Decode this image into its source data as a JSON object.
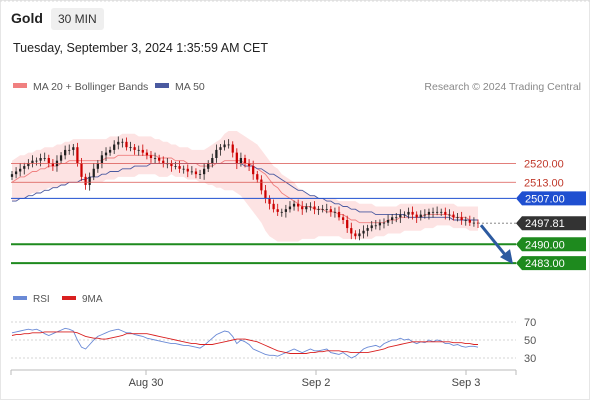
{
  "header": {
    "symbol": "Gold",
    "timeframe": "30 MIN",
    "datetime": "Tuesday, September 3, 2024 1:35:59 AM CET"
  },
  "credit": "Research © 2024 Trading Central",
  "colors": {
    "bollinger_fill": "#fde0e0",
    "ma20": "#f08080",
    "ma50": "#4a5aa0",
    "candle_up": "#222222",
    "candle_down": "#cc0000",
    "resistance": "#d9534f",
    "pivot": "#1f4fd0",
    "support": "#1e8a1e",
    "current": "#333333",
    "arrow": "#2c5aa0",
    "rsi": "#6a8ad6",
    "rsi_ma": "#d92020"
  },
  "chart_data": [
    {
      "type": "candlestick",
      "legend": [
        "MA 20 + Bollinger Bands",
        "MA 50"
      ],
      "ylim": [
        2476,
        2545
      ],
      "x_ticks": [
        "Aug 30",
        "Sep 2",
        "Sep 3"
      ],
      "levels": [
        {
          "value": 2520.0,
          "label": "2520.00",
          "kind": "resistance"
        },
        {
          "value": 2513.0,
          "label": "2513.00",
          "kind": "resistance"
        },
        {
          "value": 2507.0,
          "label": "2507.00",
          "kind": "pivot"
        },
        {
          "value": 2497.81,
          "label": "2497.81",
          "kind": "current"
        },
        {
          "value": 2490.0,
          "label": "2490.00",
          "kind": "support"
        },
        {
          "value": 2483.0,
          "label": "2483.00",
          "kind": "support"
        }
      ],
      "forecast": {
        "from": 2497.81,
        "to": 2483.0
      },
      "close": [
        2516,
        2517,
        2518,
        2519,
        2520,
        2521,
        2521,
        2522,
        2522,
        2520,
        2519,
        2521,
        2523,
        2525,
        2525,
        2526,
        2520,
        2515,
        2512,
        2515,
        2518,
        2520,
        2523,
        2524,
        2525,
        2527,
        2528,
        2528,
        2526,
        2526,
        2525,
        2525,
        2524,
        2523,
        2522,
        2522,
        2521,
        2520,
        2520,
        2519,
        2519,
        2518,
        2518,
        2517,
        2517,
        2516,
        2516,
        2518,
        2520,
        2522,
        2525,
        2526,
        2527,
        2527,
        2524,
        2520,
        2522,
        2520,
        2519,
        2516,
        2514,
        2510,
        2507,
        2505,
        2503,
        2502,
        2502,
        2503,
        2504,
        2505,
        2504,
        2503,
        2504,
        2504,
        2503,
        2503,
        2503,
        2503,
        2502,
        2502,
        2500,
        2499,
        2496,
        2494,
        2493,
        2494,
        2495,
        2496,
        2497,
        2497,
        2498,
        2498,
        2499,
        2500,
        2500,
        2501,
        2501,
        2502,
        2501,
        2500,
        2501,
        2501,
        2502,
        2502,
        2502,
        2502,
        2501,
        2501,
        2500,
        2500,
        2499,
        2499,
        2498,
        2498,
        2497.81
      ],
      "ma20": [
        2513,
        2514,
        2515,
        2515,
        2516,
        2517,
        2517,
        2518,
        2518,
        2519,
        2519,
        2519,
        2520,
        2520,
        2521,
        2521,
        2521,
        2521,
        2521,
        2521,
        2521,
        2521,
        2521,
        2522,
        2522,
        2522,
        2523,
        2523,
        2523,
        2523,
        2523,
        2523,
        2523,
        2523,
        2523,
        2523,
        2522,
        2522,
        2522,
        2522,
        2521,
        2521,
        2521,
        2520,
        2520,
        2520,
        2519,
        2519,
        2519,
        2519,
        2520,
        2520,
        2521,
        2521,
        2521,
        2521,
        2521,
        2520,
        2520,
        2519,
        2518,
        2517,
        2516,
        2514,
        2512,
        2511,
        2509,
        2508,
        2507,
        2506,
        2505,
        2504,
        2504,
        2504,
        2503,
        2503,
        2503,
        2502,
        2502,
        2502,
        2501,
        2501,
        2500,
        2499,
        2499,
        2498,
        2498,
        2498,
        2498,
        2498,
        2498,
        2498,
        2499,
        2499,
        2499,
        2500,
        2500,
        2500,
        2500,
        2500,
        2500,
        2501,
        2501,
        2501,
        2501,
        2501,
        2501,
        2501,
        2500,
        2500,
        2500,
        2500,
        2499,
        2499,
        2499
      ],
      "bb_upper": [
        2521,
        2522,
        2523,
        2523,
        2524,
        2524,
        2525,
        2525,
        2526,
        2526,
        2526,
        2527,
        2527,
        2528,
        2528,
        2529,
        2529,
        2529,
        2529,
        2529,
        2529,
        2529,
        2529,
        2529,
        2530,
        2530,
        2530,
        2531,
        2531,
        2531,
        2531,
        2530,
        2530,
        2530,
        2530,
        2529,
        2529,
        2528,
        2528,
        2527,
        2527,
        2526,
        2526,
        2526,
        2525,
        2525,
        2525,
        2525,
        2526,
        2527,
        2528,
        2529,
        2531,
        2532,
        2532,
        2532,
        2531,
        2530,
        2529,
        2528,
        2527,
        2525,
        2523,
        2521,
        2519,
        2518,
        2516,
        2515,
        2514,
        2513,
        2511,
        2510,
        2509,
        2508,
        2508,
        2507,
        2507,
        2507,
        2507,
        2507,
        2506,
        2506,
        2506,
        2506,
        2506,
        2505,
        2505,
        2505,
        2505,
        2504,
        2504,
        2504,
        2504,
        2504,
        2504,
        2505,
        2505,
        2505,
        2505,
        2505,
        2505,
        2505,
        2505,
        2505,
        2505,
        2505,
        2505,
        2505,
        2505,
        2504,
        2504,
        2504,
        2504,
        2504,
        2504
      ],
      "bb_lower": [
        2506,
        2506,
        2507,
        2507,
        2508,
        2509,
        2509,
        2510,
        2510,
        2511,
        2511,
        2511,
        2512,
        2512,
        2513,
        2513,
        2513,
        2513,
        2513,
        2513,
        2513,
        2513,
        2513,
        2514,
        2514,
        2514,
        2515,
        2515,
        2515,
        2515,
        2515,
        2516,
        2516,
        2516,
        2516,
        2516,
        2515,
        2515,
        2515,
        2516,
        2515,
        2515,
        2515,
        2514,
        2514,
        2514,
        2513,
        2513,
        2512,
        2512,
        2511,
        2511,
        2510,
        2510,
        2510,
        2509,
        2508,
        2506,
        2504,
        2502,
        2500,
        2498,
        2495,
        2493,
        2492,
        2491,
        2491,
        2491,
        2491,
        2491,
        2491,
        2492,
        2492,
        2492,
        2492,
        2493,
        2493,
        2493,
        2493,
        2493,
        2493,
        2492,
        2492,
        2492,
        2492,
        2492,
        2492,
        2492,
        2492,
        2493,
        2493,
        2493,
        2494,
        2494,
        2494,
        2494,
        2495,
        2495,
        2495,
        2495,
        2495,
        2496,
        2496,
        2496,
        2497,
        2497,
        2497,
        2497,
        2496,
        2496,
        2496,
        2496,
        2495,
        2495,
        2495
      ],
      "ma50": [
        2506,
        2506,
        2507,
        2507,
        2508,
        2508,
        2509,
        2509,
        2510,
        2510,
        2511,
        2511,
        2512,
        2512,
        2513,
        2513,
        2513,
        2514,
        2514,
        2515,
        2515,
        2515,
        2516,
        2516,
        2517,
        2517,
        2517,
        2518,
        2518,
        2518,
        2519,
        2519,
        2519,
        2519,
        2520,
        2520,
        2520,
        2520,
        2520,
        2520,
        2520,
        2520,
        2520,
        2520,
        2520,
        2520,
        2520,
        2520,
        2520,
        2520,
        2520,
        2520,
        2520,
        2520,
        2520,
        2520,
        2520,
        2519,
        2519,
        2519,
        2518,
        2518,
        2517,
        2516,
        2516,
        2515,
        2514,
        2513,
        2512,
        2511,
        2510,
        2510,
        2509,
        2508,
        2508,
        2507,
        2507,
        2506,
        2506,
        2505,
        2505,
        2504,
        2504,
        2503,
        2503,
        2502,
        2502,
        2502,
        2502,
        2501,
        2501,
        2501,
        2501,
        2501,
        2501,
        2501,
        2501,
        2500,
        2500,
        2500,
        2500,
        2500,
        2500,
        2500,
        2500,
        2500,
        2500,
        2500,
        2499,
        2499,
        2499,
        2499,
        2499,
        2499,
        2499
      ]
    },
    {
      "type": "line",
      "legend": [
        "RSI",
        "9MA"
      ],
      "ylim": [
        20,
        80
      ],
      "y_ticks": [
        70,
        50,
        30
      ],
      "series": [
        {
          "name": "RSI",
          "values": [
            58,
            59,
            60,
            61,
            62,
            61,
            62,
            60,
            57,
            55,
            57,
            59,
            61,
            63,
            62,
            60,
            50,
            42,
            40,
            45,
            50,
            54,
            56,
            58,
            60,
            61,
            62,
            60,
            58,
            58,
            56,
            55,
            54,
            52,
            51,
            50,
            49,
            48,
            47,
            46,
            46,
            45,
            44,
            44,
            43,
            42,
            41,
            44,
            48,
            52,
            56,
            58,
            60,
            59,
            54,
            46,
            50,
            48,
            45,
            40,
            38,
            36,
            34,
            33,
            33,
            32,
            34,
            36,
            38,
            40,
            38,
            36,
            38,
            40,
            38,
            38,
            39,
            40,
            36,
            35,
            34,
            36,
            33,
            30,
            32,
            36,
            40,
            42,
            43,
            44,
            42,
            46,
            48,
            50,
            50,
            52,
            50,
            51,
            48,
            46,
            48,
            47,
            50,
            48,
            50,
            49,
            46,
            46,
            44,
            45,
            43,
            42,
            43,
            43,
            42
          ]
        },
        {
          "name": "9MA",
          "values": [
            55,
            56,
            56,
            57,
            57,
            58,
            58,
            58,
            59,
            59,
            59,
            59,
            59,
            59,
            59,
            59,
            58,
            56,
            54,
            53,
            52,
            52,
            51,
            51,
            52,
            53,
            54,
            55,
            57,
            57,
            57,
            57,
            57,
            57,
            56,
            55,
            54,
            53,
            52,
            51,
            50,
            49,
            48,
            47,
            46,
            46,
            45,
            45,
            45,
            45,
            46,
            47,
            48,
            49,
            50,
            51,
            51,
            51,
            50,
            49,
            48,
            46,
            44,
            42,
            40,
            38,
            37,
            36,
            35,
            35,
            35,
            35,
            35,
            36,
            36,
            37,
            37,
            38,
            38,
            38,
            38,
            37,
            37,
            36,
            36,
            36,
            36,
            36,
            37,
            38,
            39,
            40,
            42,
            43,
            44,
            45,
            46,
            47,
            48,
            48,
            48,
            48,
            48,
            48,
            48,
            48,
            48,
            48,
            47,
            47,
            47,
            46,
            46,
            45,
            45
          ]
        }
      ]
    }
  ]
}
